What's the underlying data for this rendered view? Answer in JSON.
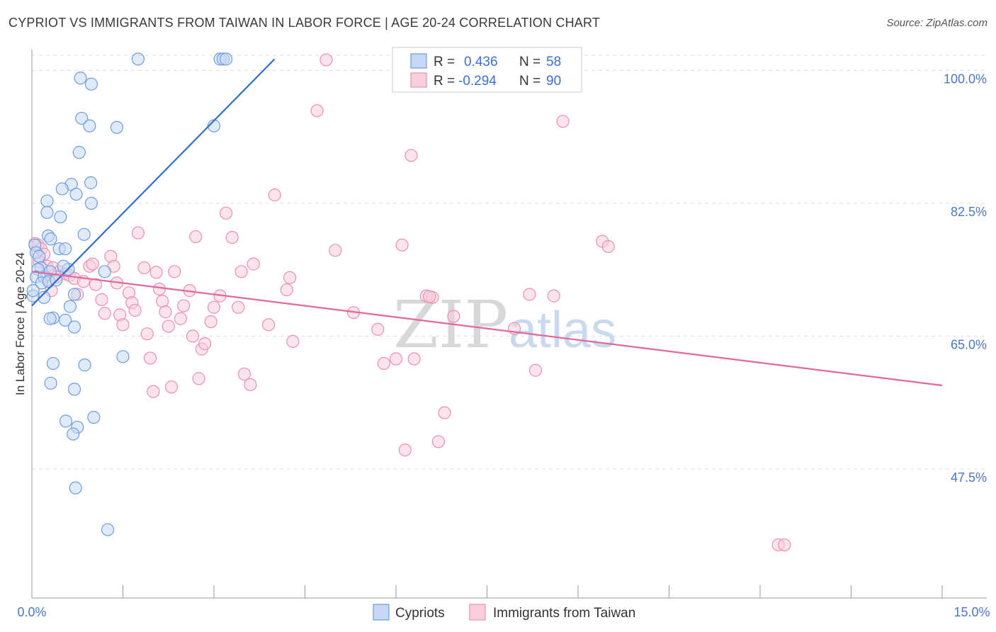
{
  "header": {
    "title": "CYPRIOT VS IMMIGRANTS FROM TAIWAN IN LABOR FORCE | AGE 20-24 CORRELATION CHART",
    "source": "Source: ZipAtlas.com"
  },
  "colors": {
    "blue_fill": "#c5d8f5",
    "blue_stroke": "#6f9de0",
    "blue_line": "#2f6fcc",
    "pink_fill": "#f9cedd",
    "pink_stroke": "#ec8fb0",
    "pink_line": "#e0699a",
    "grid": "#dddddd",
    "axis": "#999999"
  },
  "watermark": {
    "zip": "ZIP",
    "atlas": "atlas"
  },
  "chart_data": {
    "type": "scatter",
    "title": "CYPRIOT VS IMMIGRANTS FROM TAIWAN IN LABOR FORCE | AGE 20-24 CORRELATION CHART",
    "xlabel": "",
    "ylabel": "In Labor Force | Age 20-24",
    "xlim": [
      0,
      15
    ],
    "ylim": [
      30.5,
      102.0
    ],
    "x_tick_labels": {
      "min": "0.0%",
      "max": "15.0%"
    },
    "y_ticks": [
      {
        "value": 100.0,
        "label": "100.0%"
      },
      {
        "value": 82.5,
        "label": "82.5%"
      },
      {
        "value": 65.0,
        "label": "65.0%"
      },
      {
        "value": 47.5,
        "label": "47.5%"
      }
    ],
    "legend": {
      "series": [
        {
          "r_label": "R =",
          "r_value": "0.436",
          "n_label": "N =",
          "n_value": "58"
        },
        {
          "r_label": "R =",
          "r_value": "-0.294",
          "n_label": "N =",
          "n_value": "90"
        }
      ]
    },
    "series": [
      {
        "name": "Cypriots",
        "trend": {
          "x": [
            0.0,
            4.0
          ],
          "y": [
            69.0,
            101.5
          ]
        },
        "points": [
          [
            1.75,
            101.5
          ],
          [
            3.1,
            101.5
          ],
          [
            3.15,
            101.5
          ],
          [
            3.2,
            101.5
          ],
          [
            0.8,
            99.0
          ],
          [
            0.98,
            98.2
          ],
          [
            0.82,
            93.7
          ],
          [
            0.95,
            92.7
          ],
          [
            1.4,
            92.5
          ],
          [
            3.0,
            92.7
          ],
          [
            0.78,
            89.2
          ],
          [
            0.65,
            85.0
          ],
          [
            0.97,
            85.2
          ],
          [
            0.5,
            84.4
          ],
          [
            0.73,
            83.7
          ],
          [
            0.25,
            82.8
          ],
          [
            0.98,
            82.5
          ],
          [
            0.25,
            81.3
          ],
          [
            0.47,
            80.7
          ],
          [
            0.86,
            78.4
          ],
          [
            0.27,
            78.2
          ],
          [
            0.31,
            77.8
          ],
          [
            0.45,
            76.5
          ],
          [
            0.55,
            76.5
          ],
          [
            0.05,
            77.0
          ],
          [
            0.07,
            76.0
          ],
          [
            0.12,
            75.5
          ],
          [
            0.15,
            74.0
          ],
          [
            0.1,
            73.8
          ],
          [
            0.07,
            72.8
          ],
          [
            0.2,
            72.8
          ],
          [
            0.3,
            73.5
          ],
          [
            0.6,
            73.8
          ],
          [
            1.2,
            73.5
          ],
          [
            0.52,
            74.2
          ],
          [
            0.16,
            72.0
          ],
          [
            0.28,
            72.2
          ],
          [
            0.4,
            72.4
          ],
          [
            0.7,
            70.5
          ],
          [
            0.2,
            70.1
          ],
          [
            0.02,
            70.3
          ],
          [
            0.63,
            68.9
          ],
          [
            0.35,
            67.4
          ],
          [
            0.55,
            67.1
          ],
          [
            0.3,
            67.3
          ],
          [
            0.7,
            66.2
          ],
          [
            1.5,
            62.3
          ],
          [
            0.35,
            61.4
          ],
          [
            0.87,
            61.2
          ],
          [
            0.31,
            58.8
          ],
          [
            0.7,
            58.0
          ],
          [
            0.56,
            53.8
          ],
          [
            1.02,
            54.3
          ],
          [
            0.75,
            53.0
          ],
          [
            0.68,
            52.1
          ],
          [
            0.72,
            45.0
          ],
          [
            1.25,
            39.5
          ],
          [
            0.02,
            71.0
          ]
        ]
      },
      {
        "name": "Immigrants from Taiwan",
        "trend": {
          "x": [
            0.0,
            15.0
          ],
          "y": [
            73.5,
            58.5
          ]
        },
        "points": [
          [
            0.05,
            77.2
          ],
          [
            0.1,
            77.0
          ],
          [
            0.15,
            76.5
          ],
          [
            0.2,
            75.8
          ],
          [
            0.12,
            74.8
          ],
          [
            0.25,
            74.2
          ],
          [
            0.35,
            74.0
          ],
          [
            0.45,
            73.5
          ],
          [
            0.55,
            73.2
          ],
          [
            0.62,
            73.0
          ],
          [
            0.28,
            72.3
          ],
          [
            0.4,
            72.8
          ],
          [
            0.7,
            72.6
          ],
          [
            0.85,
            72.2
          ],
          [
            0.32,
            71.0
          ],
          [
            0.75,
            70.5
          ],
          [
            0.95,
            74.2
          ],
          [
            1.0,
            74.5
          ],
          [
            1.05,
            71.8
          ],
          [
            1.15,
            69.8
          ],
          [
            1.2,
            68.0
          ],
          [
            1.3,
            75.5
          ],
          [
            1.35,
            74.2
          ],
          [
            1.4,
            72.0
          ],
          [
            1.45,
            67.8
          ],
          [
            1.5,
            66.5
          ],
          [
            1.6,
            70.7
          ],
          [
            1.65,
            69.4
          ],
          [
            1.7,
            68.4
          ],
          [
            1.75,
            78.6
          ],
          [
            1.85,
            74.0
          ],
          [
            1.9,
            65.3
          ],
          [
            1.95,
            62.1
          ],
          [
            2.0,
            57.7
          ],
          [
            2.05,
            73.4
          ],
          [
            2.1,
            71.2
          ],
          [
            2.15,
            69.6
          ],
          [
            2.2,
            68.2
          ],
          [
            2.25,
            66.3
          ],
          [
            2.3,
            58.3
          ],
          [
            2.35,
            73.5
          ],
          [
            2.45,
            67.3
          ],
          [
            2.5,
            69.0
          ],
          [
            2.6,
            71.0
          ],
          [
            2.65,
            65.0
          ],
          [
            2.7,
            78.1
          ],
          [
            2.75,
            59.4
          ],
          [
            2.8,
            63.3
          ],
          [
            2.85,
            64.0
          ],
          [
            2.95,
            66.9
          ],
          [
            3.0,
            68.8
          ],
          [
            3.1,
            70.3
          ],
          [
            3.2,
            81.2
          ],
          [
            3.3,
            78.0
          ],
          [
            3.4,
            68.8
          ],
          [
            3.45,
            73.5
          ],
          [
            3.5,
            60.0
          ],
          [
            3.6,
            58.6
          ],
          [
            3.65,
            74.5
          ],
          [
            3.9,
            66.5
          ],
          [
            4.0,
            83.6
          ],
          [
            4.2,
            71.1
          ],
          [
            4.25,
            72.7
          ],
          [
            4.3,
            64.3
          ],
          [
            4.7,
            94.7
          ],
          [
            4.85,
            101.4
          ],
          [
            5.0,
            76.3
          ],
          [
            5.3,
            68.1
          ],
          [
            5.7,
            65.9
          ],
          [
            5.8,
            61.4
          ],
          [
            6.0,
            62.0
          ],
          [
            6.1,
            77.0
          ],
          [
            6.15,
            50.0
          ],
          [
            6.25,
            88.8
          ],
          [
            6.3,
            62.0
          ],
          [
            6.5,
            70.3
          ],
          [
            6.6,
            70.1
          ],
          [
            6.7,
            51.1
          ],
          [
            6.8,
            54.9
          ],
          [
            6.95,
            67.6
          ],
          [
            7.95,
            66.0
          ],
          [
            8.2,
            70.5
          ],
          [
            8.3,
            60.5
          ],
          [
            8.6,
            70.3
          ],
          [
            8.75,
            93.3
          ],
          [
            9.4,
            77.5
          ],
          [
            9.5,
            76.8
          ],
          [
            12.3,
            37.5
          ],
          [
            12.4,
            37.5
          ],
          [
            6.55,
            70.2
          ]
        ]
      }
    ]
  },
  "bottom_legend": {
    "items": [
      {
        "label": "Cypriots"
      },
      {
        "label": "Immigrants from Taiwan"
      }
    ]
  }
}
